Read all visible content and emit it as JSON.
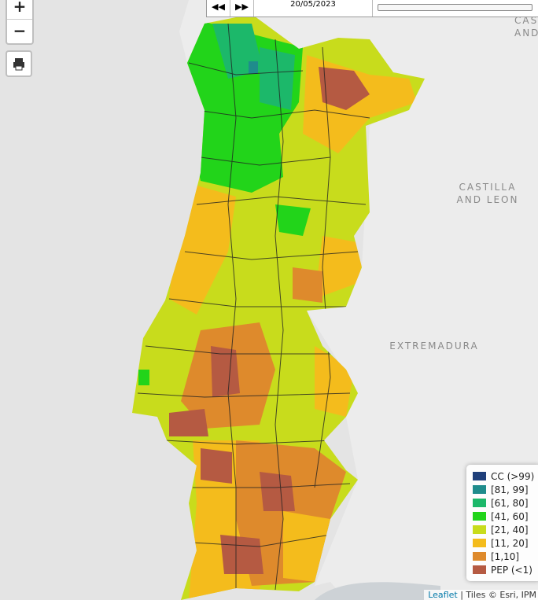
{
  "zoom": {
    "in": "+",
    "out": "−"
  },
  "timeline": {
    "date": "20/05/2023"
  },
  "map_labels": {
    "castilla": "CASTILLA",
    "and_leon": "AND LEON",
    "extremadura": "EXTREMADURA",
    "cas_cut": "CAS",
    "and_cut": "AND"
  },
  "legend": {
    "items": [
      {
        "label": "CC (>99)",
        "color": "#1f3f7a"
      },
      {
        "label": "[81, 99]",
        "color": "#1f8c8c"
      },
      {
        "label": "[61, 80]",
        "color": "#1cb86a"
      },
      {
        "label": "[41, 60]",
        "color": "#22d41a"
      },
      {
        "label": "[21, 40]",
        "color": "#c8dc1c"
      },
      {
        "label": "[11, 20]",
        "color": "#f4bc1c"
      },
      {
        "label": "[1,10]",
        "color": "#de8a2c"
      },
      {
        "label": "PEP (<1)",
        "color": "#b55a42"
      }
    ]
  },
  "attribution": {
    "link": "Leaflet",
    "text": "| Tiles © Esri, IPM"
  }
}
